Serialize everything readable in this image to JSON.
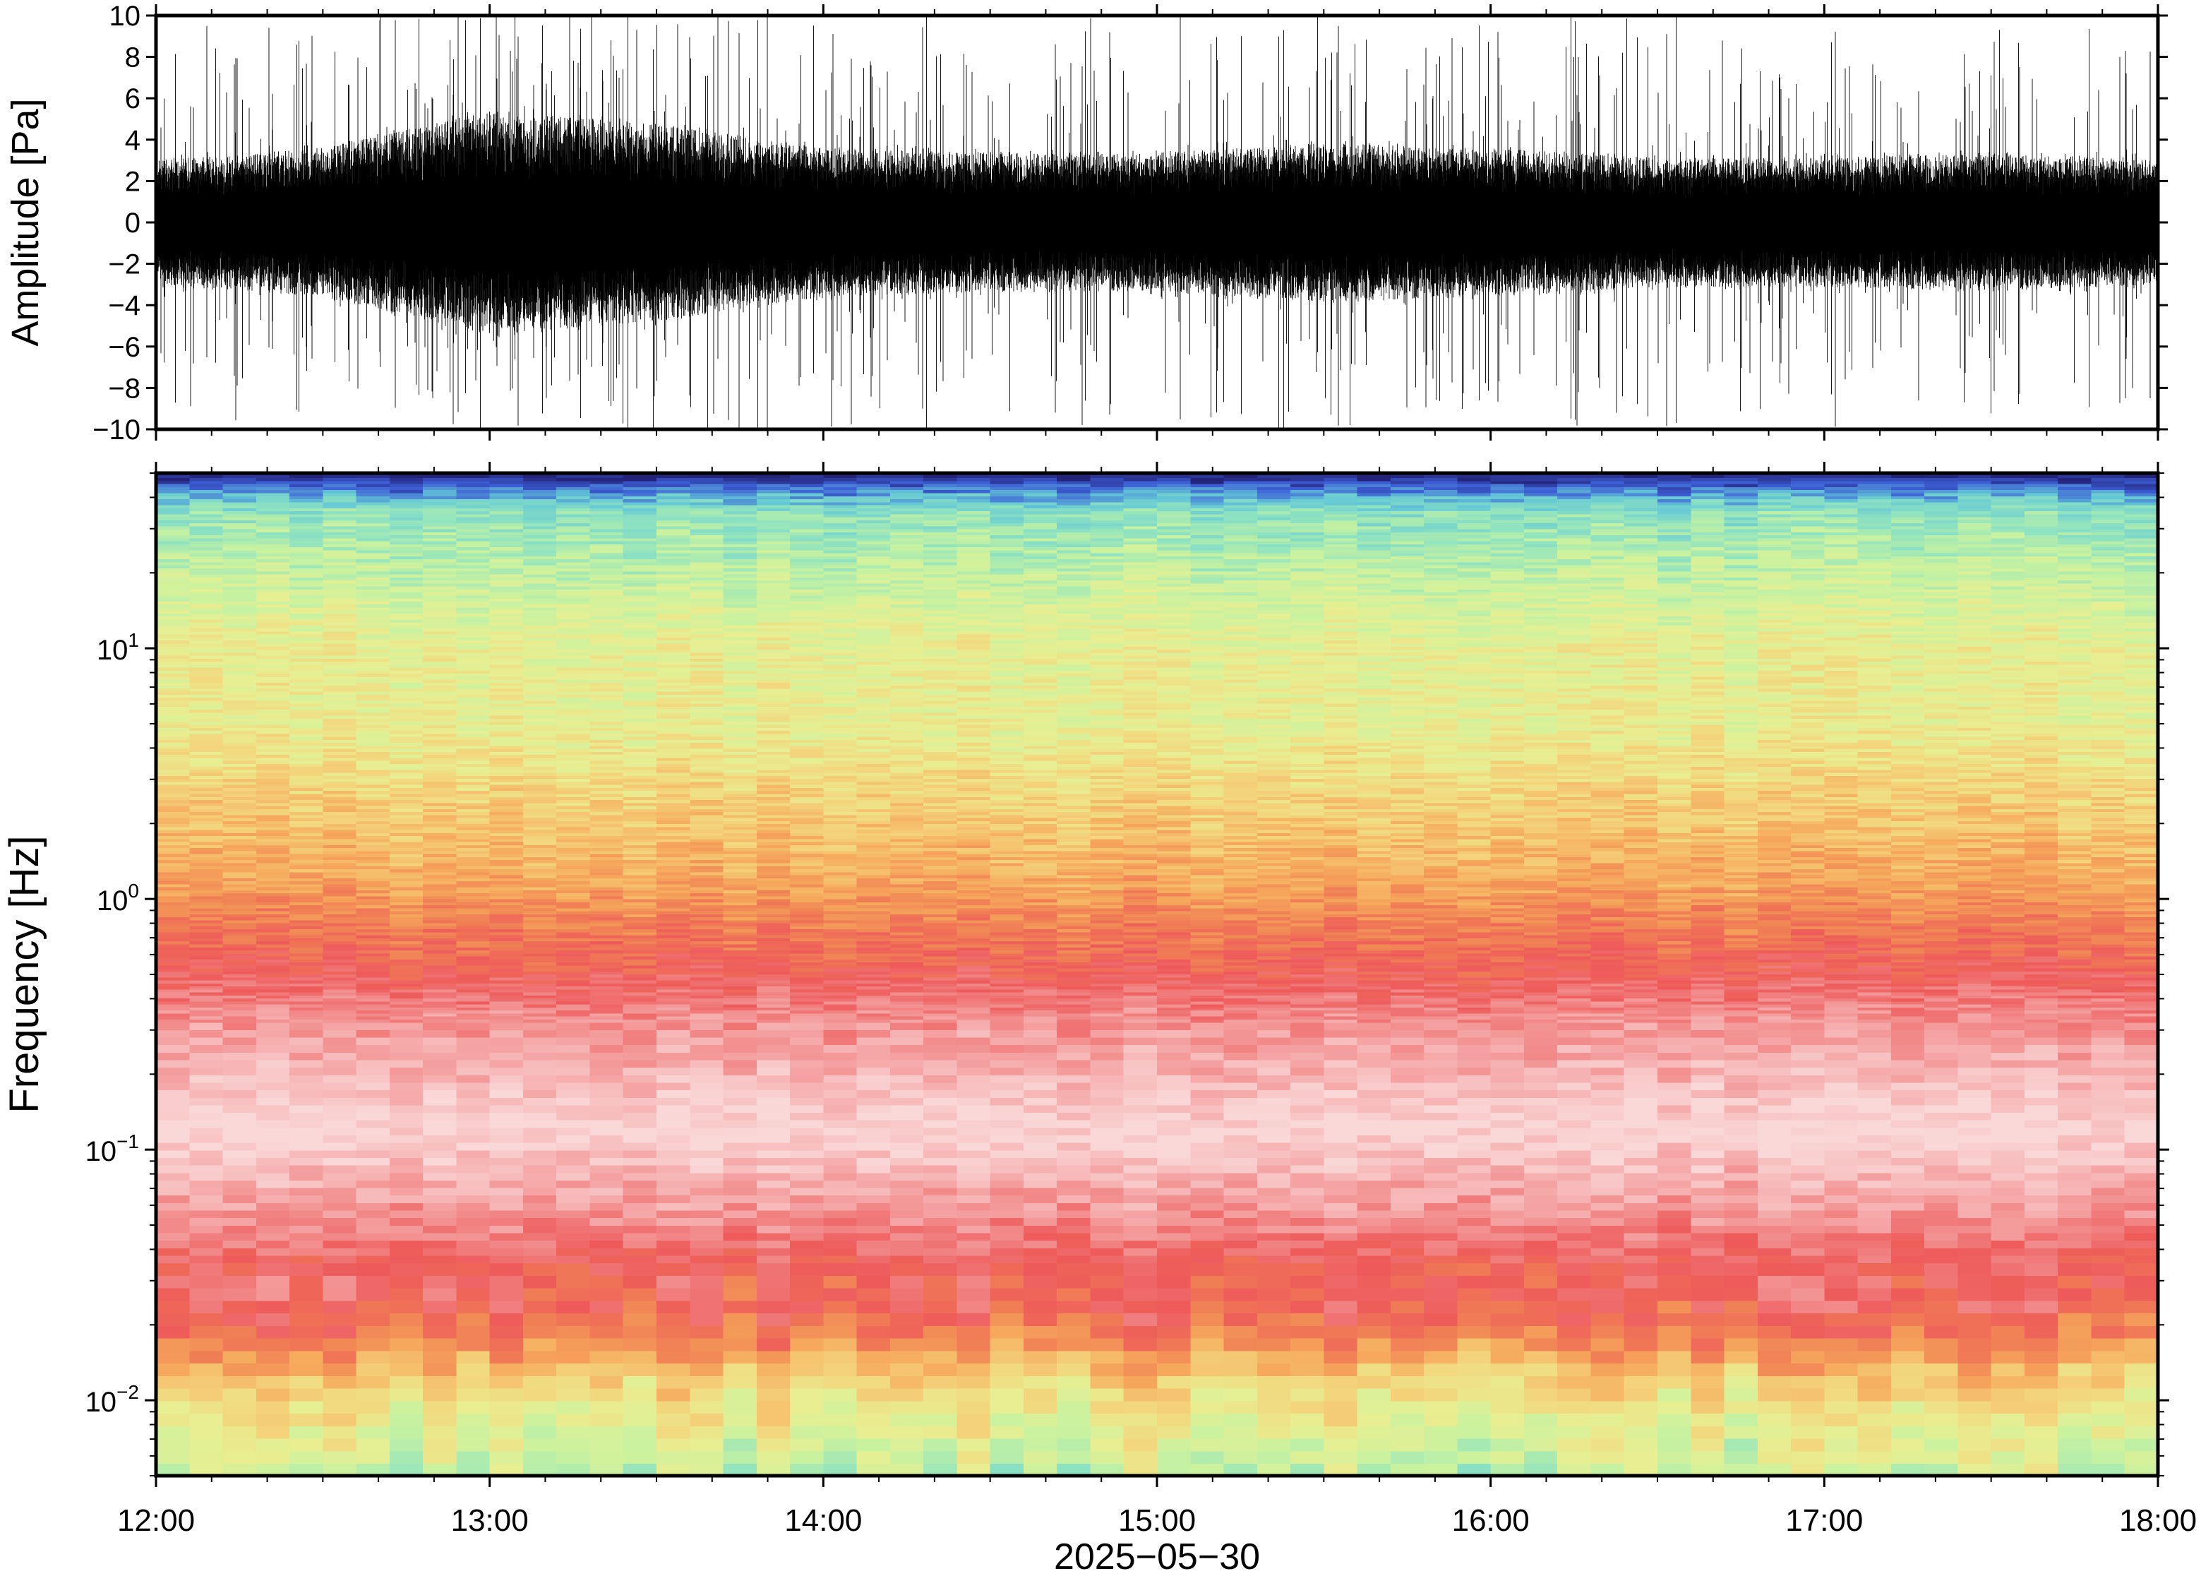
{
  "chart_data": [
    {
      "type": "line",
      "panel": "waveform",
      "ylabel": "Amplitude [Pa]",
      "ylim": [
        -10,
        10
      ],
      "yticks": [
        {
          "value": 10,
          "label": "10"
        },
        {
          "value": 8,
          "label": "8"
        },
        {
          "value": 6,
          "label": "6"
        },
        {
          "value": 4,
          "label": "4"
        },
        {
          "value": 2,
          "label": "2"
        },
        {
          "value": 0,
          "label": "0"
        },
        {
          "value": -2,
          "label": "−2"
        },
        {
          "value": -4,
          "label": "−4"
        },
        {
          "value": -6,
          "label": "−6"
        },
        {
          "value": -8,
          "label": "−8"
        },
        {
          "value": -10,
          "label": "−10"
        }
      ],
      "xlim": [
        "12:00",
        "18:00"
      ],
      "envelope": {
        "description_times_h": [
          12.0,
          12.5,
          13.0,
          13.5,
          14.0,
          14.5,
          15.0,
          15.5,
          16.0,
          16.5,
          17.0,
          17.5,
          18.0
        ],
        "core_amplitude": [
          2.5,
          3.0,
          4.5,
          4.0,
          3.0,
          2.8,
          2.8,
          3.2,
          3.0,
          2.6,
          2.6,
          2.8,
          2.5
        ],
        "peak_amplitude": [
          9,
          9.5,
          10,
          10,
          9.5,
          9,
          9,
          9.5,
          9,
          9,
          8.5,
          8.5,
          8.5
        ]
      },
      "color": "#000000",
      "grid": false
    },
    {
      "type": "heatmap",
      "panel": "spectrogram",
      "ylabel": "Frequency [Hz]",
      "yscale": "log",
      "ylim": [
        0.005,
        50
      ],
      "yticks": [
        {
          "value": 0.01,
          "base": "10",
          "exp": "−2"
        },
        {
          "value": 0.1,
          "base": "10",
          "exp": "−1"
        },
        {
          "value": 1,
          "base": "10",
          "exp": "0"
        },
        {
          "value": 10,
          "base": "10",
          "exp": "1"
        }
      ],
      "xlabel": "2025−05−30",
      "xlim": [
        "12:00",
        "18:00"
      ],
      "xticks": [
        "12:00",
        "13:00",
        "14:00",
        "15:00",
        "16:00",
        "17:00",
        "18:00"
      ],
      "colormap": "spectral",
      "colormap_stops": [
        "#23237a",
        "#3d5fd6",
        "#63c7d6",
        "#8fe3c0",
        "#c8f2a0",
        "#e8ef92",
        "#f4d27a",
        "#f6a95c",
        "#f07f55",
        "#ee5a5a",
        "#f28a8a",
        "#f7b7b7",
        "#fad8d8"
      ],
      "frequency_profile": {
        "freq_hz": [
          0.005,
          0.008,
          0.012,
          0.018,
          0.025,
          0.035,
          0.05,
          0.08,
          0.12,
          0.2,
          0.35,
          0.5,
          0.8,
          1.2,
          2.5,
          5,
          10,
          20,
          35,
          45,
          50
        ],
        "colormap_index": [
          4,
          5,
          6,
          8,
          9,
          9,
          10,
          11,
          12,
          11,
          10,
          9,
          8,
          7,
          6,
          5,
          5,
          4,
          3,
          1,
          0
        ]
      },
      "grid": false
    }
  ]
}
